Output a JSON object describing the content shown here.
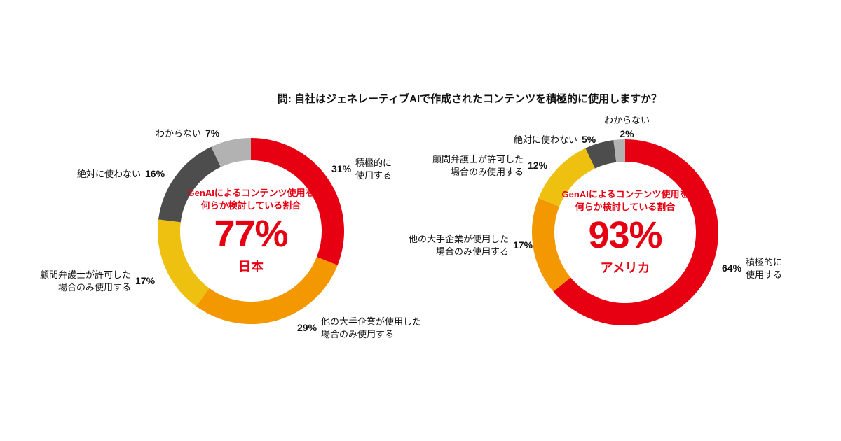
{
  "title": "問: 自社はジェネレーティブAIで作成されたコンテンツを積極的に使用しますか？",
  "accent_color": "#e60012",
  "chart_data": [
    {
      "type": "donut",
      "country": "日本",
      "center_note": "GenAIによるコンテンツ使用を\n何らか検討している割合",
      "center_value": "77%",
      "segments": [
        {
          "label": "積極的に\n使用する",
          "pct": "31%",
          "value": 31,
          "color": "#e60012"
        },
        {
          "label": "他の大手企業が使用した\n場合のみ使用する",
          "pct": "29%",
          "value": 29,
          "color": "#f39800"
        },
        {
          "label": "顧問弁護士が許可した\n場合のみ使用する",
          "pct": "17%",
          "value": 17,
          "color": "#eec111"
        },
        {
          "label": "絶対に使わない",
          "pct": "16%",
          "value": 16,
          "color": "#4d4d4d"
        },
        {
          "label": "わからない",
          "pct": "7%",
          "value": 7,
          "color": "#b2b2b2"
        }
      ]
    },
    {
      "type": "donut",
      "country": "アメリカ",
      "center_note": "GenAIによるコンテンツ使用を\n何らか検討している割合",
      "center_value": "93%",
      "segments": [
        {
          "label": "積極的に\n使用する",
          "pct": "64%",
          "value": 64,
          "color": "#e60012"
        },
        {
          "label": "他の大手企業が使用した\n場合のみ使用する",
          "pct": "17%",
          "value": 17,
          "color": "#f39800"
        },
        {
          "label": "顧問弁護士が許可した\n場合のみ使用する",
          "pct": "12%",
          "value": 12,
          "color": "#eec111"
        },
        {
          "label": "絶対に使わない",
          "pct": "5%",
          "value": 5,
          "color": "#4d4d4d"
        },
        {
          "label": "わからない",
          "pct": "2%",
          "value": 2,
          "color": "#b2b2b2"
        }
      ]
    }
  ]
}
